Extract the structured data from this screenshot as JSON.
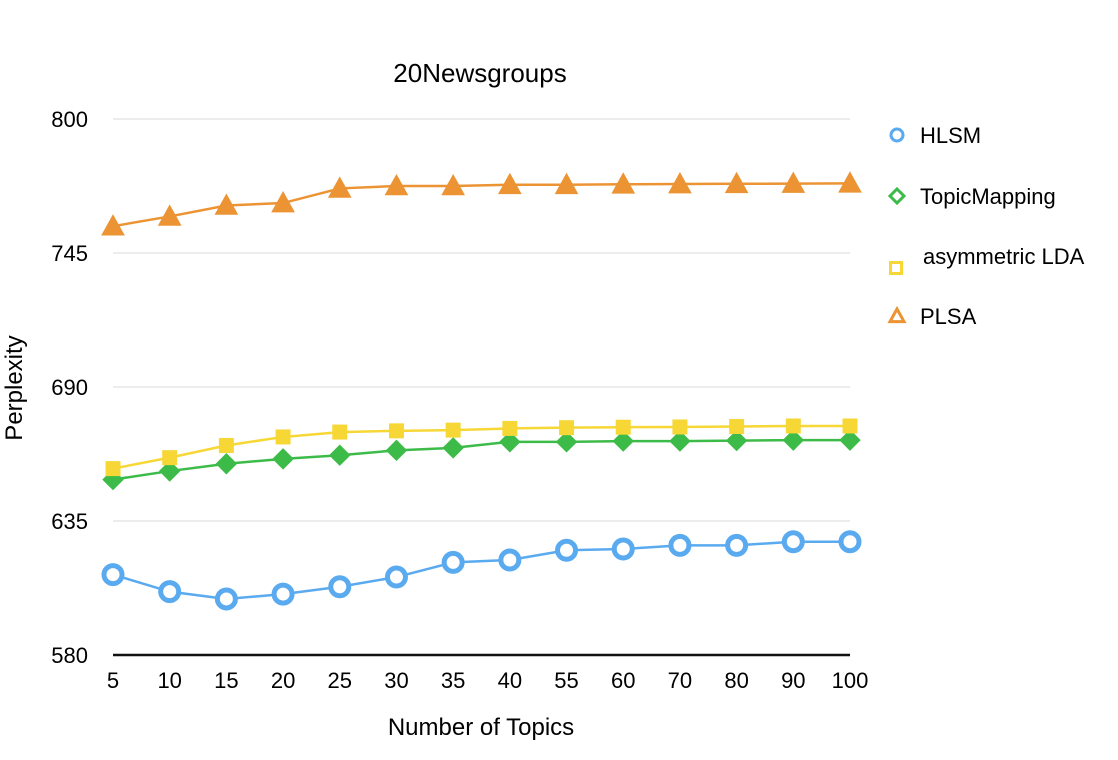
{
  "colors": {
    "HLSM": "#5aaaf0",
    "TopicMapping": "#3dbb48",
    "asymmetric LDA": "#f7d736",
    "PLSA": "#ec9434",
    "grid": "#d8d8d8",
    "axis": "#111111"
  },
  "chart_data": {
    "type": "line",
    "title": "20Newsgroups",
    "xlabel": "Number of Topics",
    "ylabel": "Perplexity",
    "categories": [
      "5",
      "10",
      "15",
      "20",
      "25",
      "30",
      "35",
      "40",
      "55",
      "60",
      "70",
      "80",
      "90",
      "100"
    ],
    "ylim": [
      580,
      800
    ],
    "yticks": [
      "580",
      "635",
      "690",
      "745",
      "800"
    ],
    "grid": true,
    "legend_position": "right",
    "series": [
      {
        "name": "HLSM",
        "marker": "circle",
        "values": [
          613,
          606,
          603,
          605,
          608,
          612,
          618,
          619,
          623,
          623.5,
          625,
          625,
          626.5,
          626.5
        ]
      },
      {
        "name": "TopicMapping",
        "marker": "diamond",
        "values": [
          652,
          655.5,
          658.5,
          660.5,
          662,
          664,
          665,
          667.5,
          667.5,
          667.8,
          667.8,
          668,
          668.2,
          668.2
        ]
      },
      {
        "name": "asymmetric LDA",
        "marker": "square",
        "values": [
          656.5,
          661,
          666,
          669.5,
          671.5,
          672,
          672.3,
          673,
          673.3,
          673.5,
          673.6,
          673.8,
          674,
          674
        ]
      },
      {
        "name": "PLSA",
        "marker": "triangle",
        "values": [
          756,
          760,
          764.5,
          765.5,
          771.5,
          772.5,
          772.5,
          773,
          773,
          773.2,
          773.3,
          773.4,
          773.5,
          773.6
        ]
      }
    ]
  }
}
